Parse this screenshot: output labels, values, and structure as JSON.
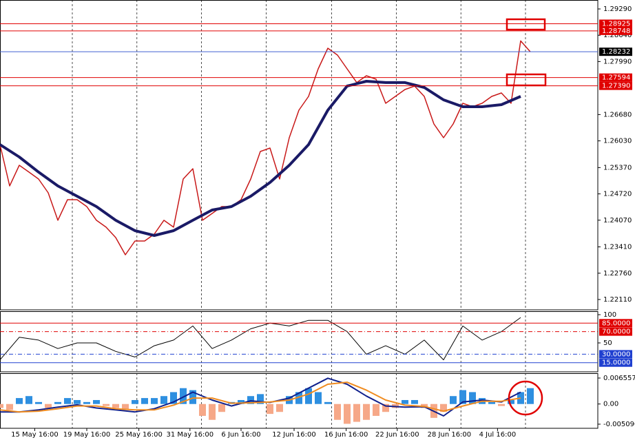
{
  "chart_data": [
    {
      "type": "line",
      "xlim": [
        0,
        62
      ],
      "ylim": [
        1.21854,
        1.29511
      ],
      "yticks": [
        {
          "value": 1.2929,
          "label": "1.29290"
        },
        {
          "value": 1.2864,
          "label": "1.28640"
        },
        {
          "value": 1.2799,
          "label": "1.27990"
        },
        {
          "value": 1.2668,
          "label": "1.26680"
        },
        {
          "value": 1.2603,
          "label": "1.26030"
        },
        {
          "value": 1.2537,
          "label": "1.25370"
        },
        {
          "value": 1.2472,
          "label": "1.24720"
        },
        {
          "value": 1.2407,
          "label": "1.24070"
        },
        {
          "value": 1.2341,
          "label": "1.23410"
        },
        {
          "value": 1.2276,
          "label": "1.22760"
        },
        {
          "value": 1.2211,
          "label": "1.22110"
        }
      ],
      "xgrid": [
        7.5,
        14.2,
        20.9,
        27.6,
        34.4,
        41.1,
        47.8,
        54.5
      ],
      "levels": [
        {
          "value": 1.28925,
          "label": "1.28925",
          "color": "#e00000",
          "box": "#e00000"
        },
        {
          "value": 1.28748,
          "label": "1.28748",
          "color": "#e00000",
          "box": "#e00000"
        },
        {
          "value": 1.28232,
          "label": "1.28232",
          "color": "#4060d0",
          "box": "#000000"
        },
        {
          "value": 1.27594,
          "label": "1.27594",
          "color": "#e00000",
          "box": "#e00000"
        },
        {
          "value": 1.2739,
          "label": "1.27390",
          "color": "#e00000",
          "box": "#e00000"
        }
      ],
      "series": [
        {
          "color": "#c81818",
          "width": 1.5,
          "x": [
            0,
            1,
            2,
            3,
            4,
            5,
            6,
            7,
            8,
            9,
            10,
            11,
            12,
            13,
            14,
            15,
            16,
            17,
            18,
            19,
            20,
            21,
            22,
            23,
            24,
            25,
            26,
            27,
            28,
            29,
            30,
            31,
            32,
            33,
            34,
            35,
            36,
            37,
            38,
            39,
            40,
            41,
            42,
            43,
            44,
            45,
            46,
            47,
            48,
            49,
            50,
            51,
            52,
            53,
            54,
            55
          ],
          "values": [
            1.25938,
            1.24917,
            1.25428,
            1.25258,
            1.25087,
            1.24747,
            1.24067,
            1.24577,
            1.24577,
            1.24407,
            1.24067,
            1.23897,
            1.23641,
            1.23216,
            1.23556,
            1.23556,
            1.23726,
            1.24067,
            1.23897,
            1.25087,
            1.25343,
            1.24067,
            1.24237,
            1.24407,
            1.24407,
            1.24577,
            1.25087,
            1.25768,
            1.25853,
            1.25087,
            1.26108,
            1.26789,
            1.27129,
            1.2781,
            1.2832,
            1.2815,
            1.2781,
            1.2747,
            1.2764,
            1.27555,
            1.26959,
            1.27129,
            1.27299,
            1.27384,
            1.27129,
            1.26449,
            1.26108,
            1.26449,
            1.26959,
            1.26874,
            1.26959,
            1.27129,
            1.27214,
            1.26959,
            1.285,
            1.28232
          ]
        },
        {
          "color": "#1a1a66",
          "width": 4,
          "x": [
            0,
            2,
            4,
            6,
            8,
            10,
            12,
            14,
            16,
            18,
            20,
            22,
            24,
            26,
            28,
            30,
            32,
            34,
            36,
            38,
            40,
            42,
            44,
            46,
            48,
            50,
            52,
            54
          ],
          "values": [
            1.25938,
            1.25632,
            1.25258,
            1.24917,
            1.24662,
            1.24407,
            1.24067,
            1.23811,
            1.23692,
            1.23811,
            1.24067,
            1.24322,
            1.24407,
            1.24662,
            1.25002,
            1.25428,
            1.25938,
            1.26789,
            1.27384,
            1.27504,
            1.2747,
            1.2747,
            1.2735,
            1.27044,
            1.26874,
            1.26874,
            1.26925,
            1.27129
          ]
        }
      ]
    },
    {
      "type": "line",
      "xlim": [
        0,
        62
      ],
      "ylim": [
        -1.2,
        106.1
      ],
      "yticks": [
        100,
        50
      ],
      "levels": [
        {
          "value": 85,
          "label": "85.0000",
          "color": "#e00000",
          "box": "#e00000"
        },
        {
          "value": 70,
          "label": "70.0000",
          "color": "#e00000",
          "box": "#e00000",
          "dash": true
        },
        {
          "value": 30,
          "label": "30.0000",
          "color": "#2040d0",
          "box": "#2040d0",
          "dash": true
        },
        {
          "value": 15,
          "label": "15.0000",
          "color": "#2040d0",
          "box": "#2040d0"
        }
      ],
      "series": [
        {
          "color": "#000000",
          "width": 1,
          "x": [
            0,
            2,
            4,
            6,
            8,
            10,
            12,
            14,
            16,
            18,
            20,
            22,
            24,
            26,
            28,
            30,
            32,
            34,
            36,
            38,
            40,
            42,
            44,
            46,
            48,
            50,
            52,
            54
          ],
          "values": [
            20,
            60,
            55,
            40,
            50,
            50,
            35,
            25,
            45,
            55,
            80,
            40,
            55,
            75,
            85,
            80,
            90,
            90,
            70,
            30,
            45,
            30,
            55,
            20,
            80,
            55,
            70,
            95
          ]
        }
      ]
    },
    {
      "type": "combo",
      "xlim": [
        0,
        62
      ],
      "ylim": [
        -0.006134,
        0.007775
      ],
      "yticks": [
        0.0065575,
        {
          "value": 0,
          "label": "0.00"
        },
        -0.0050909
      ],
      "xticks": [
        {
          "value": 3.6,
          "label": "15 May 16:00"
        },
        {
          "value": 9,
          "label": "19 May 16:00"
        },
        {
          "value": 14.4,
          "label": "25 May 16:00"
        },
        {
          "value": 19.7,
          "label": "31 May 16:00"
        },
        {
          "value": 25,
          "label": "6 Jun 16:00"
        },
        {
          "value": 30.5,
          "label": "12 Jun 16:00"
        },
        {
          "value": 35.9,
          "label": "16 Jun 16:00"
        },
        {
          "value": 41.2,
          "label": "22 Jun 16:00"
        },
        {
          "value": 46.6,
          "label": "28 Jun 16:00"
        },
        {
          "value": 51.6,
          "label": "4 Jul 16:00"
        }
      ],
      "series": [
        {
          "type": "bar",
          "color": "#2e8fe0",
          "neg_color": "#f6a888",
          "x": [
            0,
            1,
            2,
            3,
            4,
            5,
            6,
            7,
            8,
            9,
            10,
            11,
            12,
            13,
            14,
            15,
            16,
            17,
            18,
            19,
            20,
            21,
            22,
            23,
            24,
            25,
            26,
            27,
            28,
            29,
            30,
            31,
            32,
            33,
            34,
            35,
            36,
            37,
            38,
            39,
            40,
            41,
            42,
            43,
            44,
            45,
            46,
            47,
            48,
            49,
            50,
            51,
            52,
            53,
            54,
            55
          ],
          "values": [
            -0.001,
            -0.0015,
            0.0015,
            0.002,
            0.0005,
            -0.001,
            0.0005,
            0.0015,
            0.001,
            0.0005,
            0.001,
            -0.0005,
            -0.001,
            -0.0015,
            0.001,
            0.0015,
            0.0015,
            0.002,
            0.003,
            0.004,
            0.0035,
            -0.003,
            -0.004,
            -0.002,
            0.0005,
            0.001,
            0.002,
            0.0025,
            -0.0025,
            -0.002,
            0.002,
            0.003,
            0.004,
            0.003,
            0.0005,
            -0.004,
            -0.005,
            -0.0045,
            -0.004,
            -0.003,
            -0.002,
            -0.001,
            0.001,
            0.001,
            -0.001,
            -0.0035,
            -0.002,
            0.002,
            0.0035,
            0.003,
            0.0015,
            0.0005,
            -0.0005,
            0.001,
            0.003,
            0.004
          ]
        },
        {
          "type": "line",
          "color": "#10208c",
          "width": 2,
          "x": [
            0,
            2,
            4,
            6,
            8,
            10,
            12,
            14,
            16,
            18,
            20,
            22,
            24,
            26,
            28,
            30,
            32,
            34,
            36,
            38,
            40,
            42,
            44,
            46,
            48,
            50,
            52,
            54
          ],
          "values": [
            -0.002,
            -0.002,
            -0.0015,
            -0.0008,
            -0.0002,
            -0.001,
            -0.0015,
            -0.002,
            -0.0012,
            0.0005,
            0.003,
            0.001,
            -0.0005,
            0.0008,
            0.0004,
            0.0015,
            0.004,
            0.0065,
            0.005,
            0.002,
            -0.0005,
            -0.0008,
            -0.0007,
            -0.003,
            0.0005,
            0.001,
            0.0005,
            0.003
          ]
        },
        {
          "type": "line",
          "color": "#f08c20",
          "width": 2,
          "x": [
            0,
            2,
            4,
            6,
            8,
            10,
            12,
            14,
            16,
            18,
            20,
            22,
            24,
            26,
            28,
            30,
            32,
            34,
            36,
            38,
            40,
            42,
            44,
            46,
            48,
            50,
            52,
            54
          ],
          "values": [
            -0.0015,
            -0.002,
            -0.0018,
            -0.0012,
            -0.0005,
            -0.0005,
            -0.0012,
            -0.0015,
            -0.0015,
            -0.0003,
            0.0015,
            0.0015,
            0.0002,
            0.0003,
            0.0005,
            0.001,
            0.0025,
            0.005,
            0.0055,
            0.0035,
            0.001,
            -0.0003,
            -0.0006,
            -0.0018,
            -0.0005,
            0.0007,
            0.0007,
            0.0015
          ]
        }
      ]
    }
  ]
}
